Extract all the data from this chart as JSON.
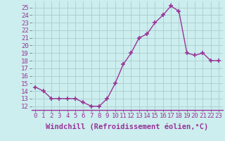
{
  "x": [
    0,
    1,
    2,
    3,
    4,
    5,
    6,
    7,
    8,
    9,
    10,
    11,
    12,
    13,
    14,
    15,
    16,
    17,
    18,
    19,
    20,
    21,
    22,
    23
  ],
  "y": [
    14.5,
    14.0,
    13.0,
    13.0,
    13.0,
    13.0,
    12.5,
    12.0,
    12.0,
    13.0,
    15.0,
    17.5,
    19.0,
    21.0,
    21.5,
    23.0,
    24.0,
    25.2,
    24.5,
    19.0,
    18.7,
    19.0,
    18.0,
    18.0
  ],
  "line_color": "#993399",
  "marker": "+",
  "marker_size": 4,
  "bg_color": "#cceeee",
  "xlabel": "Windchill (Refroidissement éolien,°C)",
  "xlabel_color": "#993399",
  "ylim": [
    11.5,
    25.8
  ],
  "yticks": [
    12,
    13,
    14,
    15,
    16,
    17,
    18,
    19,
    20,
    21,
    22,
    23,
    24,
    25
  ],
  "xtick_labels": [
    "0",
    "1",
    "2",
    "3",
    "4",
    "5",
    "6",
    "7",
    "8",
    "9",
    "10",
    "11",
    "12",
    "13",
    "14",
    "15",
    "16",
    "17",
    "18",
    "19",
    "20",
    "21",
    "22",
    "23"
  ],
  "grid_color": "#aacccc",
  "tick_fontsize": 6.5,
  "xlabel_fontsize": 7.5
}
